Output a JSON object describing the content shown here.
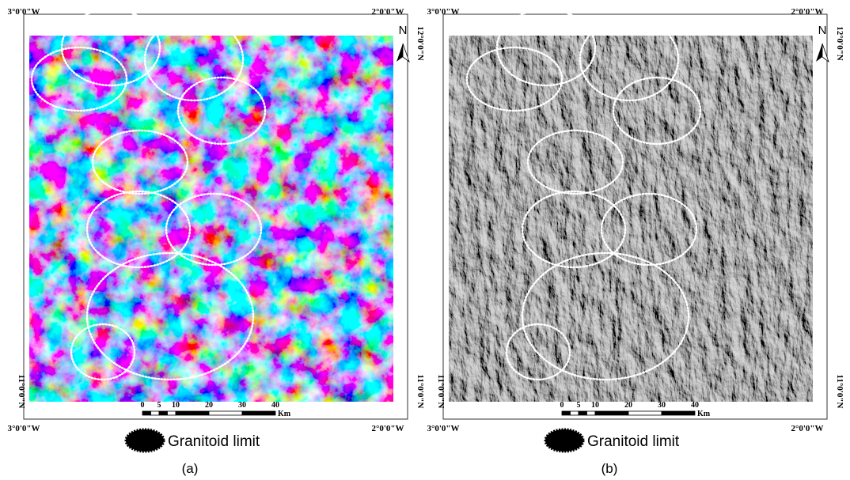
{
  "panels": [
    {
      "label": "(a)",
      "style": "color",
      "coords": {
        "top_left": "3°0'0\"W",
        "top_right": "2°0'0\"W",
        "bottom_left": "3°0'0\"W",
        "bottom_right": "2°0'0\"W",
        "right_top": "12°0'0\"N",
        "right_bottom": "11°0'0\"N",
        "left_bottom": "11°0'0\"N"
      },
      "north": "N",
      "scale": {
        "ticks": [
          0,
          5,
          10,
          20,
          30,
          40
        ],
        "unit": "Km"
      },
      "legend": "Granitoid limit"
    },
    {
      "label": "(b)",
      "style": "gray",
      "coords": {
        "top_left": "3°0'0\"W",
        "top_right": "2°0'0\"W",
        "bottom_left": "3°0'0\"W",
        "bottom_right": "2°0'0\"W",
        "right_top": "12°0'0\"N",
        "right_bottom": "11°0'0\"N",
        "left_bottom": "11°0'0\"N"
      },
      "north": "N",
      "scale": {
        "ticks": [
          0,
          5,
          10,
          20,
          30,
          40
        ],
        "unit": "Km"
      },
      "legend": "Granitoid limit"
    }
  ]
}
